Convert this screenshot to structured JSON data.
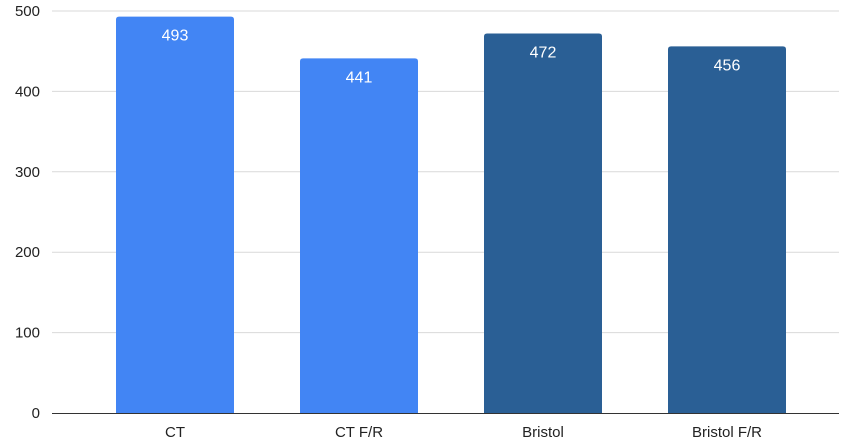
{
  "chart_data": {
    "type": "bar",
    "categories": [
      "CT",
      "CT F/R",
      "Bristol",
      "Bristol F/R"
    ],
    "values": [
      493,
      441,
      472,
      456
    ],
    "data_labels": [
      "493",
      "441",
      "472",
      "456"
    ],
    "bar_colors": [
      "#4285f4",
      "#4285f4",
      "#2a5f95",
      "#2a5f95"
    ],
    "ylim": [
      0,
      500
    ],
    "yticks": [
      0,
      100,
      200,
      300,
      400,
      500
    ],
    "grid": true,
    "legend": "none",
    "title": "",
    "xlabel": "",
    "ylabel": ""
  }
}
